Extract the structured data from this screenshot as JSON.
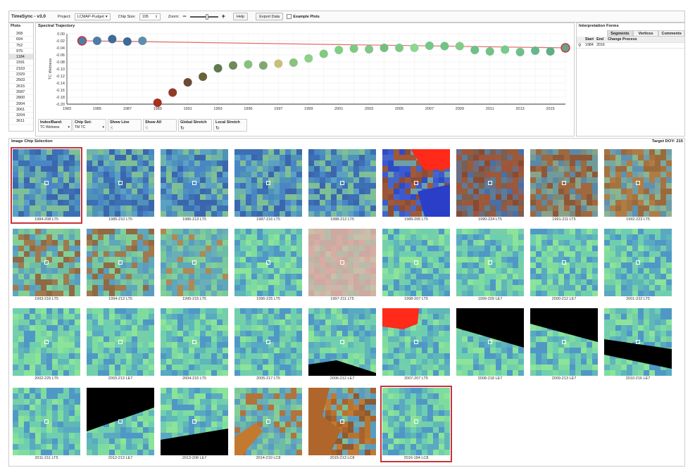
{
  "app": {
    "title": "TimeSync - v3.0",
    "project_label": "Project:",
    "project_value": "LCMAP-Pudget",
    "chip_size_label": "Chip Size:",
    "chip_size_value": "195",
    "zoom_label": "Zoom:",
    "zoom_minus": "−",
    "zoom_plus": "+",
    "help_label": "Help",
    "export_label": "Export Data",
    "example_plots_label": "Example Plots"
  },
  "plots": {
    "title": "Plots",
    "items": [
      "268",
      "694",
      "752",
      "975",
      "1184",
      "1591",
      "2163",
      "2329",
      "2503",
      "2615",
      "2587",
      "2800",
      "2904",
      "3061",
      "3204",
      "3611"
    ],
    "selected": "1184"
  },
  "spectral": {
    "title": "Spectral Trajectory",
    "controls": {
      "index_label": "Index/Band:",
      "index_value": "TC Wetness",
      "chipset_label": "Chip Set:",
      "chipset_value": "TM TC",
      "show_line_label": "Show Line",
      "show_all_label": "Show All",
      "global_stretch_label": "Global Stretch",
      "local_stretch_label": "Local Stretch"
    }
  },
  "chart_data": {
    "type": "scatter",
    "title": "Spectral Trajectory",
    "ylabel": "TC Wetness",
    "xlabel": "",
    "xlim": [
      1983,
      2016
    ],
    "ylim": [
      -0.2,
      0.0
    ],
    "xticks": [
      1983,
      1985,
      1987,
      1989,
      1991,
      1993,
      1995,
      1997,
      1999,
      2001,
      2003,
      2005,
      2007,
      2009,
      2011,
      2013,
      2015
    ],
    "yticks": [
      "0.00",
      "-0.02",
      "-0.04",
      "-0.06",
      "-0.08",
      "-0.10",
      "-0.12",
      "-0.14",
      "-0.16",
      "-0.18",
      "-0.20"
    ],
    "points": [
      {
        "x": 1984,
        "y": -0.02,
        "color": "#4f7fa8",
        "selected": true
      },
      {
        "x": 1985,
        "y": -0.02,
        "color": "#4e7ca6"
      },
      {
        "x": 1986,
        "y": -0.015,
        "color": "#3f6b98"
      },
      {
        "x": 1987,
        "y": -0.022,
        "color": "#3e6a96"
      },
      {
        "x": 1988,
        "y": -0.02,
        "color": "#5f8eab"
      },
      {
        "x": 1989,
        "y": -0.196,
        "color": "#a8301e"
      },
      {
        "x": 1990,
        "y": -0.167,
        "color": "#8e3c28"
      },
      {
        "x": 1991,
        "y": -0.138,
        "color": "#6a4a34"
      },
      {
        "x": 1992,
        "y": -0.122,
        "color": "#6a6238"
      },
      {
        "x": 1993,
        "y": -0.098,
        "color": "#5e7a4e"
      },
      {
        "x": 1994,
        "y": -0.09,
        "color": "#6e8a58"
      },
      {
        "x": 1995,
        "y": -0.087,
        "color": "#86c07e"
      },
      {
        "x": 1996,
        "y": -0.09,
        "color": "#7fa870"
      },
      {
        "x": 1997,
        "y": -0.085,
        "color": "#c7c07a"
      },
      {
        "x": 1998,
        "y": -0.082,
        "color": "#8ac27f"
      },
      {
        "x": 1999,
        "y": -0.07,
        "color": "#8fd08a"
      },
      {
        "x": 2000,
        "y": -0.057,
        "color": "#84c882"
      },
      {
        "x": 2001,
        "y": -0.046,
        "color": "#80cf86"
      },
      {
        "x": 2002,
        "y": -0.042,
        "color": "#7ec982"
      },
      {
        "x": 2003,
        "y": -0.044,
        "color": "#82c688"
      },
      {
        "x": 2004,
        "y": -0.04,
        "color": "#76bd84"
      },
      {
        "x": 2005,
        "y": -0.04,
        "color": "#7fc988"
      },
      {
        "x": 2006,
        "y": -0.04,
        "color": "#8bd98e"
      },
      {
        "x": 2007,
        "y": -0.034,
        "color": "#74c787"
      },
      {
        "x": 2008,
        "y": -0.035,
        "color": "#74c187"
      },
      {
        "x": 2009,
        "y": -0.035,
        "color": "#82cc8b"
      },
      {
        "x": 2010,
        "y": -0.046,
        "color": "#6fbf86"
      },
      {
        "x": 2011,
        "y": -0.05,
        "color": "#72c288"
      },
      {
        "x": 2012,
        "y": -0.045,
        "color": "#79c98c"
      },
      {
        "x": 2013,
        "y": -0.052,
        "color": "#6fbf8a"
      },
      {
        "x": 2014,
        "y": -0.048,
        "color": "#66b789"
      },
      {
        "x": 2015,
        "y": -0.05,
        "color": "#5fae86"
      },
      {
        "x": 2016,
        "y": -0.04,
        "color": "#6aa187",
        "selected": true
      }
    ],
    "segment_line": {
      "x": [
        1984,
        2016
      ],
      "y": [
        -0.02,
        -0.04
      ],
      "color": "#e36a6a"
    }
  },
  "interp": {
    "title": "Interpretation Forms",
    "tabs": [
      "Segments",
      "Vertices",
      "Comments"
    ],
    "active_tab": "Segments",
    "columns": [
      "Start",
      "End",
      "Change Process"
    ],
    "rows": [
      {
        "start": "1984",
        "end": "2016",
        "process": ""
      }
    ],
    "search_icon": "search-icon"
  },
  "chips": {
    "title": "Image Chip Selection",
    "target_doy": "Target DOY: 215",
    "items": [
      {
        "label": "1984-208 LT5",
        "theme": "blue",
        "selected": true
      },
      {
        "label": "1985-210 LT5",
        "theme": "blue"
      },
      {
        "label": "1986-213 LT5",
        "theme": "blue"
      },
      {
        "label": "1987-216 LT5",
        "theme": "blue"
      },
      {
        "label": "1988-212 LT5",
        "theme": "blue"
      },
      {
        "label": "1989-205 LT5",
        "theme": "cloudy"
      },
      {
        "label": "1990-224 LT5",
        "theme": "cut"
      },
      {
        "label": "1991-211 LT5",
        "theme": "cut2"
      },
      {
        "label": "1992-223 LT5",
        "theme": "cut3"
      },
      {
        "label": "1993-216 LT5",
        "theme": "regrow"
      },
      {
        "label": "1994-212 LT5",
        "theme": "regrow"
      },
      {
        "label": "1995-215 LT5",
        "theme": "regrow2"
      },
      {
        "label": "1996-225 LT5",
        "theme": "green"
      },
      {
        "label": "1997-211 LT5",
        "theme": "haze"
      },
      {
        "label": "1998-207 LT5",
        "theme": "green"
      },
      {
        "label": "1999-209 LE7",
        "theme": "green"
      },
      {
        "label": "2000-212 LE7",
        "theme": "green"
      },
      {
        "label": "2001-222 LT5",
        "theme": "green"
      },
      {
        "label": "2002-225 LT5",
        "theme": "green"
      },
      {
        "label": "2003-213 LE7",
        "theme": "green"
      },
      {
        "label": "2004-215 LT5",
        "theme": "green"
      },
      {
        "label": "2005-217 LT5",
        "theme": "green"
      },
      {
        "label": "2006-212 LE7",
        "theme": "gap_corner"
      },
      {
        "label": "2007-207 LT5",
        "theme": "cloud_corner"
      },
      {
        "label": "2008-218 LE7",
        "theme": "gap_top"
      },
      {
        "label": "2009-213 LE7",
        "theme": "gap_top2"
      },
      {
        "label": "2010-216 LE7",
        "theme": "gap_mid"
      },
      {
        "label": "2011-211 LT5",
        "theme": "green"
      },
      {
        "label": "2012-213 LE7",
        "theme": "gap_tl"
      },
      {
        "label": "2013-208 LE7",
        "theme": "gap_bl"
      },
      {
        "label": "2014-210 LC8",
        "theme": "green_brown"
      },
      {
        "label": "2015-213 LC8",
        "theme": "brown"
      },
      {
        "label": "2016-184 LC8",
        "theme": "green",
        "selected": true
      }
    ]
  }
}
